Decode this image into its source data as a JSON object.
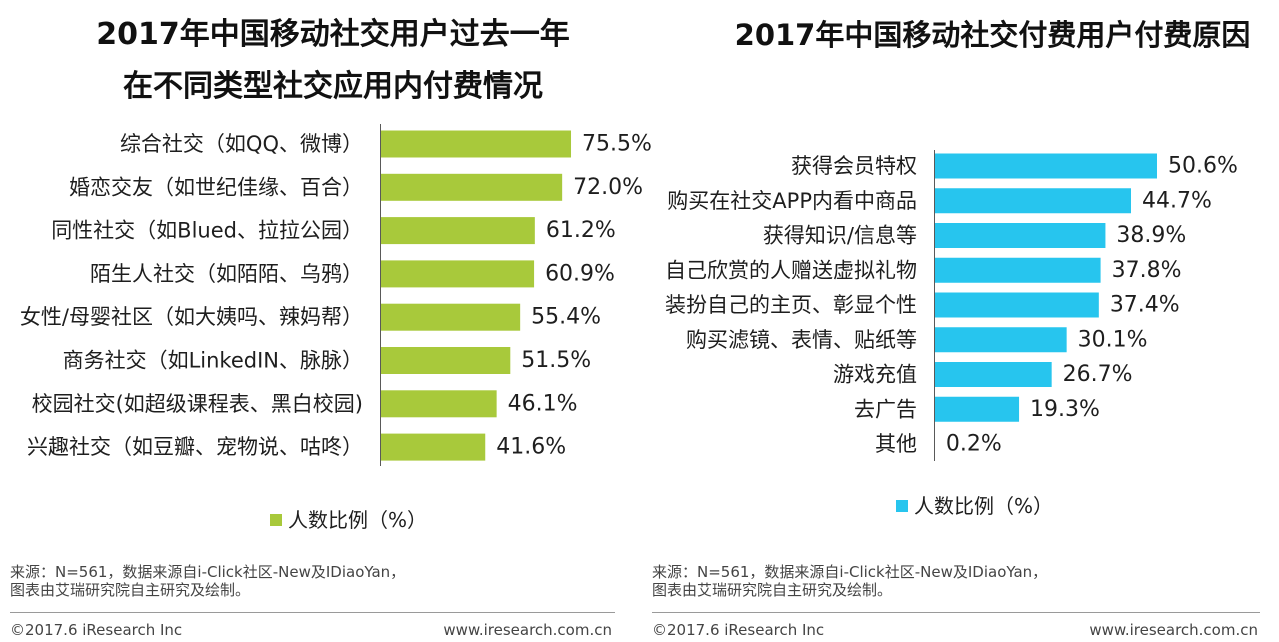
{
  "colors": {
    "left_bar": "#a8c93b",
    "right_bar": "#27c5ee"
  },
  "chart_data": [
    {
      "type": "bar",
      "title": [
        "2017年中国移动社交用户过去一年",
        "在不同类型社交应用内付费情况"
      ],
      "categories": [
        "综合社交（如QQ、微博）",
        "婚恋交友（如世纪佳缘、百合）",
        "同性社交（如Blued、拉拉公园）",
        "陌生人社交（如陌陌、乌鸦）",
        "女性/母婴社区（如大姨吗、辣妈帮）",
        "商务社交（如LinkedIN、脉脉）",
        "校园社交(如超级课程表、黑白校园)",
        "兴趣社交（如豆瓣、宠物说、咕咚）"
      ],
      "values": [
        75.5,
        72.0,
        61.2,
        60.9,
        55.4,
        51.5,
        46.1,
        41.6
      ],
      "value_labels": [
        "75.5%",
        "72.0%",
        "61.2%",
        "60.9%",
        "55.4%",
        "51.5%",
        "46.1%",
        "41.6%"
      ],
      "legend": "人数比例（%）"
    },
    {
      "type": "bar",
      "title": [
        "2017年中国移动社交付费用户付费原因"
      ],
      "categories": [
        "获得会员特权",
        "购买在社交APP内看中商品",
        "获得知识/信息等",
        "自己欣赏的人赠送虚拟礼物",
        "装扮自己的主页、彰显个性",
        "购买滤镜、表情、贴纸等",
        "游戏充值",
        "去广告",
        "其他"
      ],
      "values": [
        50.6,
        44.7,
        38.9,
        37.8,
        37.4,
        30.1,
        26.7,
        19.3,
        0.2
      ],
      "value_labels": [
        "50.6%",
        "44.7%",
        "38.9%",
        "37.8%",
        "37.4%",
        "30.1%",
        "26.7%",
        "19.3%",
        "0.2%"
      ],
      "legend": "人数比例（%）"
    }
  ],
  "footer": {
    "source_line1": "来源：N=561，数据来源自i-Click社区-New及IDiaoYan，",
    "source_line2": "图表由艾瑞研究院自主研究及绘制。",
    "copyright": "©2017.6 iResearch Inc",
    "website": "www.iresearch.com.cn"
  }
}
